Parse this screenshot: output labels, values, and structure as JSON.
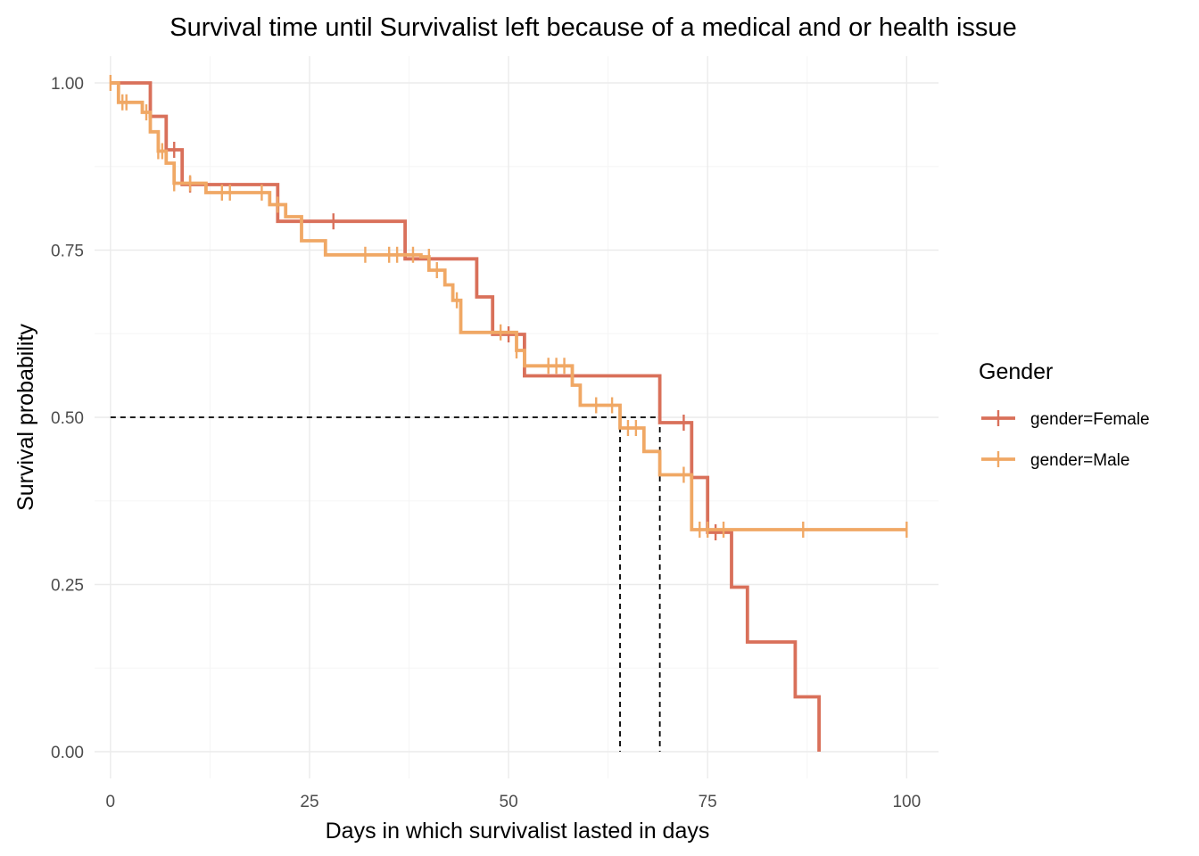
{
  "chart_data": {
    "type": "line",
    "subtype": "kaplan-meier step curve",
    "title": "Survival time until Survivalist left because of a medical and or health issue",
    "xlabel": "Days in which survivalist lasted in days",
    "ylabel": "Survival probability",
    "xlim": [
      -2,
      104
    ],
    "ylim": [
      -0.04,
      1.04
    ],
    "x_ticks": [
      0,
      25,
      50,
      75,
      100
    ],
    "x_tick_labels": [
      "0",
      "25",
      "50",
      "75",
      "100"
    ],
    "y_ticks": [
      0,
      0.25,
      0.5,
      0.75,
      1
    ],
    "y_tick_labels": [
      "0.00",
      "0.25",
      "0.50",
      "0.75",
      "1.00"
    ],
    "grid": true,
    "legend": {
      "title": "Gender",
      "position": "right"
    },
    "median_line": {
      "y": 0.5,
      "x_values": [
        64,
        69
      ]
    },
    "series": [
      {
        "name": "gender=Female",
        "color": "#d9705a",
        "steps": [
          [
            0,
            1
          ],
          [
            5,
            1
          ],
          [
            5,
            0.95
          ],
          [
            7,
            0.95
          ],
          [
            7,
            0.9
          ],
          [
            9,
            0.9
          ],
          [
            9,
            0.848
          ],
          [
            21,
            0.848
          ],
          [
            21,
            0.793
          ],
          [
            37,
            0.793
          ],
          [
            37,
            0.737
          ],
          [
            46,
            0.737
          ],
          [
            46,
            0.68
          ],
          [
            48,
            0.68
          ],
          [
            48,
            0.624
          ],
          [
            52,
            0.624
          ],
          [
            52,
            0.562
          ],
          [
            69,
            0.562
          ],
          [
            69,
            0.492
          ],
          [
            73,
            0.492
          ],
          [
            73,
            0.41
          ],
          [
            75,
            0.41
          ],
          [
            75,
            0.328
          ],
          [
            78,
            0.328
          ],
          [
            78,
            0.246
          ],
          [
            80,
            0.246
          ],
          [
            80,
            0.164
          ],
          [
            86,
            0.164
          ],
          [
            86,
            0.082
          ],
          [
            89,
            0.082
          ],
          [
            89,
            0
          ]
        ],
        "censored": [
          [
            8,
            0.9
          ],
          [
            10,
            0.848
          ],
          [
            28,
            0.793
          ],
          [
            50,
            0.624
          ],
          [
            72,
            0.492
          ],
          [
            76,
            0.328
          ]
        ]
      },
      {
        "name": "gender=Male",
        "color": "#f0a865",
        "steps": [
          [
            0,
            1
          ],
          [
            1,
            1
          ],
          [
            1,
            0.971
          ],
          [
            4,
            0.971
          ],
          [
            4,
            0.956
          ],
          [
            5,
            0.956
          ],
          [
            5,
            0.927
          ],
          [
            6,
            0.927
          ],
          [
            6,
            0.898
          ],
          [
            7,
            0.898
          ],
          [
            7,
            0.88
          ],
          [
            8,
            0.88
          ],
          [
            8,
            0.85
          ],
          [
            12,
            0.85
          ],
          [
            12,
            0.836
          ],
          [
            20,
            0.836
          ],
          [
            20,
            0.818
          ],
          [
            22,
            0.818
          ],
          [
            22,
            0.8
          ],
          [
            24,
            0.8
          ],
          [
            24,
            0.764
          ],
          [
            27,
            0.764
          ],
          [
            27,
            0.743
          ],
          [
            39,
            0.743
          ],
          [
            39,
            0.74
          ],
          [
            40,
            0.74
          ],
          [
            40,
            0.72
          ],
          [
            42,
            0.72
          ],
          [
            42,
            0.698
          ],
          [
            43,
            0.698
          ],
          [
            43,
            0.675
          ],
          [
            44,
            0.675
          ],
          [
            44,
            0.627
          ],
          [
            51,
            0.627
          ],
          [
            51,
            0.6
          ],
          [
            52,
            0.6
          ],
          [
            52,
            0.577
          ],
          [
            58,
            0.577
          ],
          [
            58,
            0.548
          ],
          [
            59,
            0.548
          ],
          [
            59,
            0.518
          ],
          [
            64,
            0.518
          ],
          [
            64,
            0.484
          ],
          [
            67,
            0.484
          ],
          [
            67,
            0.449
          ],
          [
            69,
            0.449
          ],
          [
            69,
            0.414
          ],
          [
            73,
            0.414
          ],
          [
            73,
            0.332
          ],
          [
            100,
            0.332
          ]
        ],
        "censored": [
          [
            0,
            1
          ],
          [
            1.5,
            0.971
          ],
          [
            2,
            0.971
          ],
          [
            4.5,
            0.956
          ],
          [
            6,
            0.898
          ],
          [
            6.5,
            0.898
          ],
          [
            8,
            0.85
          ],
          [
            10,
            0.85
          ],
          [
            14,
            0.836
          ],
          [
            15,
            0.836
          ],
          [
            19,
            0.836
          ],
          [
            21,
            0.818
          ],
          [
            32,
            0.743
          ],
          [
            35,
            0.743
          ],
          [
            36,
            0.743
          ],
          [
            38,
            0.743
          ],
          [
            40,
            0.74
          ],
          [
            41,
            0.72
          ],
          [
            43.5,
            0.675
          ],
          [
            49,
            0.627
          ],
          [
            51,
            0.6
          ],
          [
            55,
            0.577
          ],
          [
            56,
            0.577
          ],
          [
            57,
            0.577
          ],
          [
            61,
            0.518
          ],
          [
            63,
            0.518
          ],
          [
            65,
            0.484
          ],
          [
            66,
            0.484
          ],
          [
            72,
            0.414
          ],
          [
            74,
            0.332
          ],
          [
            75,
            0.332
          ],
          [
            77,
            0.332
          ],
          [
            87,
            0.332
          ],
          [
            100,
            0.332
          ]
        ]
      }
    ]
  }
}
